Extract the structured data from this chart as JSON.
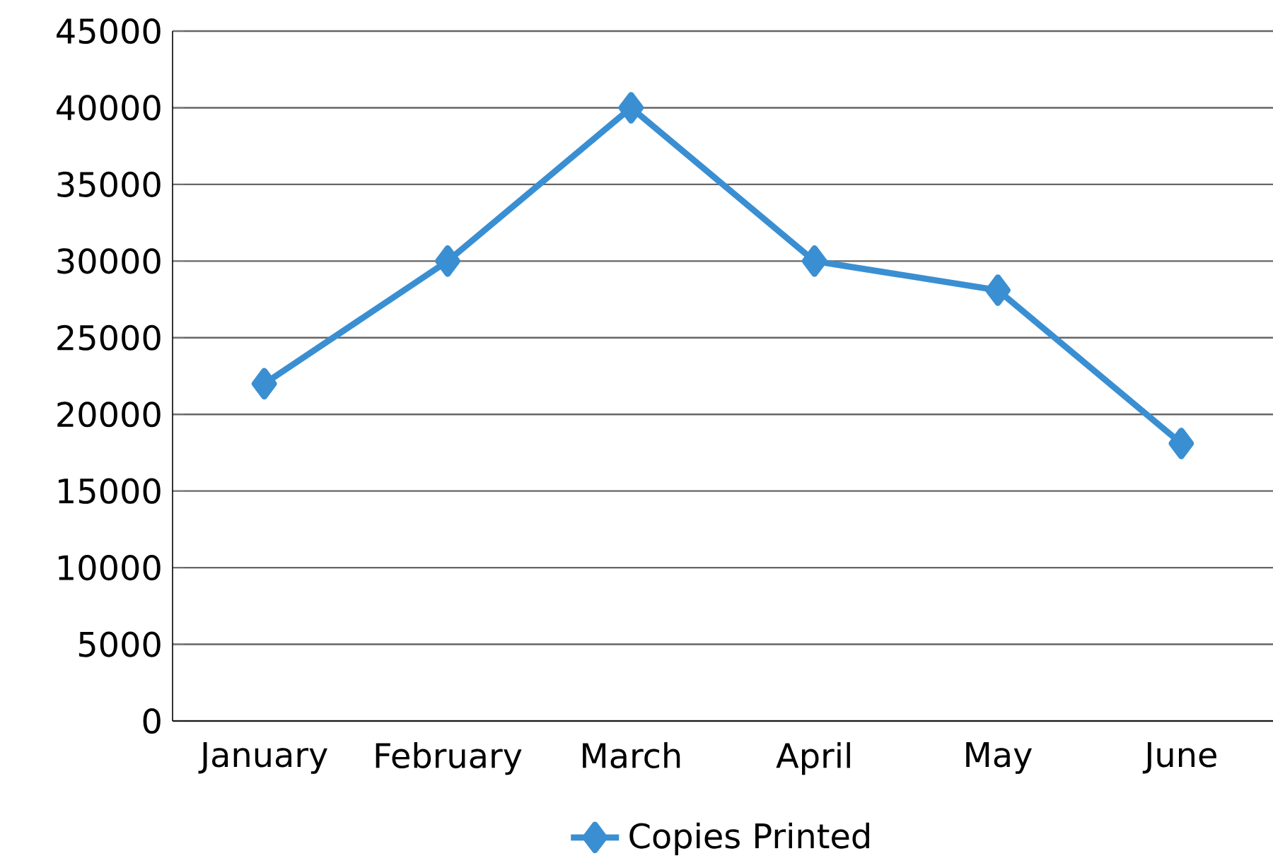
{
  "chart_data": {
    "type": "line",
    "categories": [
      "January",
      "February",
      "March",
      "April",
      "May",
      "June"
    ],
    "series": [
      {
        "name": "Copies Printed",
        "color": "#3a8fd2",
        "values": [
          22000,
          30000,
          40000,
          30000,
          28100,
          18100
        ]
      }
    ],
    "ylim": [
      0,
      45000
    ],
    "yticks": [
      0,
      5000,
      10000,
      15000,
      20000,
      25000,
      30000,
      35000,
      40000,
      45000
    ],
    "grid": "y",
    "legend": "bottom",
    "marker": "diamond",
    "line_style": "solid"
  }
}
